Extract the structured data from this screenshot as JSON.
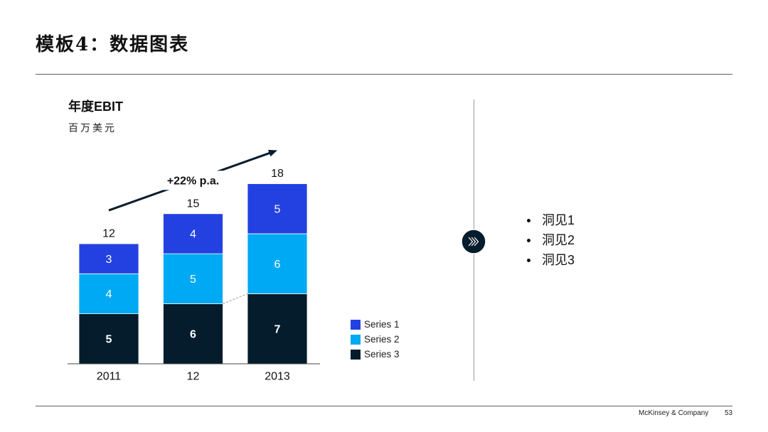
{
  "slide": {
    "title": "模板4：数据图表",
    "footer_brand": "McKinsey & Company",
    "page_number": "53",
    "divider_icon": "triple-chevron-right-icon",
    "accent_color": "#051c2c"
  },
  "chart_data": {
    "type": "bar",
    "stacked": true,
    "title": "年度EBIT",
    "subtitle": "百万美元",
    "categories": [
      "2011",
      "12",
      "2013"
    ],
    "series": [
      {
        "name": "Series 1",
        "values": [
          3,
          4,
          5
        ],
        "color": "#2341e0"
      },
      {
        "name": "Series 2",
        "values": [
          4,
          5,
          6
        ],
        "color": "#00a9f4"
      },
      {
        "name": "Series 3",
        "values": [
          5,
          6,
          7
        ],
        "color": "#051c2c"
      }
    ],
    "totals": [
      12,
      15,
      18
    ],
    "growth_arrow": {
      "label": "+22% p.a.",
      "color": "#051c2c"
    },
    "legend_position": "bottom-right",
    "grid": false,
    "y_axis_visible": false
  },
  "insights": {
    "items": [
      "洞见1",
      "洞见2",
      "洞见3"
    ]
  }
}
